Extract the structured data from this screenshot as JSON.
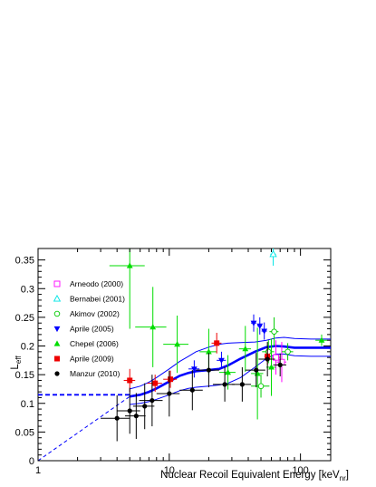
{
  "chart_data": {
    "type": "scatter",
    "x_scale": "log",
    "xlim": [
      1,
      170
    ],
    "ylim": [
      0,
      0.37
    ],
    "xlabel": "Nuclear Recoil Equivalent Energy [keV",
    "xlabel_sub": "nr",
    "xlabel_end": "]",
    "ylabel": "L",
    "ylabel_sub": "eff",
    "x_ticks": [
      {
        "value": 1,
        "label": "1"
      },
      {
        "value": 10,
        "label": "10"
      },
      {
        "value": 100,
        "label": "100"
      }
    ],
    "y_ticks": [
      {
        "value": 0,
        "label": "0"
      },
      {
        "value": 0.05,
        "label": "0.05"
      },
      {
        "value": 0.1,
        "label": "0.1"
      },
      {
        "value": 0.15,
        "label": "0.15"
      },
      {
        "value": 0.2,
        "label": "0.2"
      },
      {
        "value": 0.25,
        "label": "0.25"
      },
      {
        "value": 0.3,
        "label": "0.3"
      },
      {
        "value": 0.35,
        "label": "0.35"
      }
    ],
    "legend_position": "top-left",
    "series": [
      {
        "name": "Arneodo (2000)",
        "color": "#ff00ff",
        "marker": "square-open",
        "points": [
          {
            "x": 65,
            "y": 0.18,
            "xerr": 5,
            "yerr": 0.03
          },
          {
            "x": 72,
            "y": 0.172,
            "xerr": 6,
            "yerr": 0.035
          }
        ]
      },
      {
        "name": "Bernabei (2001)",
        "color": "#00e5e5",
        "marker": "triangle-open",
        "points": [
          {
            "x": 62,
            "y": 0.36,
            "xerr": 3,
            "yerr": 0.02
          }
        ]
      },
      {
        "name": "Akimov (2002)",
        "color": "#00cc00",
        "marker": "circle-open",
        "points": [
          {
            "x": 50,
            "y": 0.13,
            "xerr": 8,
            "yerr": 0.02
          },
          {
            "x": 57,
            "y": 0.19,
            "xerr": 6,
            "yerr": 0.02
          },
          {
            "x": 63,
            "y": 0.225,
            "xerr": 5,
            "yerr": 0.025
          },
          {
            "x": 80,
            "y": 0.19,
            "xerr": 8,
            "yerr": 0.015
          }
        ]
      },
      {
        "name": "Aprile (2005)",
        "color": "#0000ff",
        "marker": "triangle-down",
        "points": [
          {
            "x": 15.5,
            "y": 0.16,
            "xerr": 1.5,
            "yerr": 0.015
          },
          {
            "x": 25,
            "y": 0.175,
            "xerr": 2,
            "yerr": 0.015
          },
          {
            "x": 44,
            "y": 0.24,
            "xerr": 2,
            "yerr": 0.015
          },
          {
            "x": 49,
            "y": 0.235,
            "xerr": 2,
            "yerr": 0.015
          },
          {
            "x": 53,
            "y": 0.226,
            "xerr": 2.5,
            "yerr": 0.015
          }
        ]
      },
      {
        "name": "Chepel (2006)",
        "color": "#00dd00",
        "marker": "triangle-up",
        "points": [
          {
            "x": 5,
            "y": 0.34,
            "xerr": 1.5,
            "yerr": 0.11
          },
          {
            "x": 7.5,
            "y": 0.233,
            "xerr": 2,
            "yerr": 0.07
          },
          {
            "x": 11.5,
            "y": 0.203,
            "xerr": 2.5,
            "yerr": 0.05
          },
          {
            "x": 20,
            "y": 0.19,
            "xerr": 3,
            "yerr": 0.04
          },
          {
            "x": 28,
            "y": 0.154,
            "xerr": 4,
            "yerr": 0.03
          },
          {
            "x": 38,
            "y": 0.195,
            "xerr": 4,
            "yerr": 0.04
          },
          {
            "x": 47,
            "y": 0.152,
            "xerr": 5,
            "yerr": 0.08
          },
          {
            "x": 60,
            "y": 0.163,
            "xerr": 5,
            "yerr": 0.05
          },
          {
            "x": 145,
            "y": 0.21,
            "xerr": 15,
            "yerr": 0.01
          }
        ]
      },
      {
        "name": "Aprile (2009)",
        "color": "#ee0000",
        "marker": "square",
        "points": [
          {
            "x": 5,
            "y": 0.14,
            "xerr": 0.5,
            "yerr": 0.02
          },
          {
            "x": 7.8,
            "y": 0.135,
            "xerr": 1,
            "yerr": 0.015
          },
          {
            "x": 10.2,
            "y": 0.142,
            "xerr": 1.2,
            "yerr": 0.015
          },
          {
            "x": 23,
            "y": 0.205,
            "xerr": 2,
            "yerr": 0.018
          },
          {
            "x": 56,
            "y": 0.182,
            "xerr": 3,
            "yerr": 0.015
          }
        ]
      },
      {
        "name": "Manzur (2010)",
        "color": "#000000",
        "marker": "circle",
        "points": [
          {
            "x": 4,
            "y": 0.074,
            "xerr": 1,
            "yerr": 0.04
          },
          {
            "x": 5,
            "y": 0.087,
            "xerr": 1,
            "yerr": 0.04
          },
          {
            "x": 5.6,
            "y": 0.078,
            "xerr": 1,
            "yerr": 0.04
          },
          {
            "x": 6.5,
            "y": 0.095,
            "xerr": 1.2,
            "yerr": 0.04
          },
          {
            "x": 7.4,
            "y": 0.105,
            "xerr": 1.5,
            "yerr": 0.045
          },
          {
            "x": 10,
            "y": 0.117,
            "xerr": 2,
            "yerr": 0.04
          },
          {
            "x": 15,
            "y": 0.123,
            "xerr": 3,
            "yerr": 0.035
          },
          {
            "x": 20,
            "y": 0.158,
            "xerr": 4,
            "yerr": 0.03
          },
          {
            "x": 26.5,
            "y": 0.133,
            "xerr": 5,
            "yerr": 0.03
          },
          {
            "x": 36,
            "y": 0.133,
            "xerr": 6,
            "yerr": 0.03
          },
          {
            "x": 46,
            "y": 0.158,
            "xerr": 8,
            "yerr": 0.03
          },
          {
            "x": 56,
            "y": 0.177,
            "xerr": 8,
            "yerr": 0.03
          },
          {
            "x": 70,
            "y": 0.167,
            "xerr": 8,
            "yerr": 0.02
          }
        ]
      }
    ],
    "fit_curve": {
      "color": "#0000ff",
      "central": [
        [
          5,
          0.112
        ],
        [
          6,
          0.115
        ],
        [
          7,
          0.12
        ],
        [
          8,
          0.126
        ],
        [
          10,
          0.138
        ],
        [
          12,
          0.148
        ],
        [
          14,
          0.153
        ],
        [
          16,
          0.156
        ],
        [
          20,
          0.158
        ],
        [
          24,
          0.16
        ],
        [
          28,
          0.166
        ],
        [
          35,
          0.178
        ],
        [
          45,
          0.19
        ],
        [
          55,
          0.198
        ],
        [
          65,
          0.2
        ],
        [
          75,
          0.199
        ],
        [
          90,
          0.197
        ],
        [
          120,
          0.197
        ],
        [
          170,
          0.197
        ]
      ],
      "upper": [
        [
          5,
          0.125
        ],
        [
          6,
          0.13
        ],
        [
          7,
          0.137
        ],
        [
          8,
          0.145
        ],
        [
          10,
          0.16
        ],
        [
          12,
          0.173
        ],
        [
          14,
          0.182
        ],
        [
          16,
          0.19
        ],
        [
          20,
          0.198
        ],
        [
          24,
          0.203
        ],
        [
          28,
          0.205
        ],
        [
          35,
          0.206
        ],
        [
          45,
          0.207
        ],
        [
          55,
          0.21
        ],
        [
          65,
          0.214
        ],
        [
          75,
          0.215
        ],
        [
          90,
          0.213
        ],
        [
          120,
          0.212
        ],
        [
          170,
          0.212
        ]
      ],
      "lower": [
        [
          5,
          0.098
        ],
        [
          6,
          0.1
        ],
        [
          7,
          0.103
        ],
        [
          8,
          0.107
        ],
        [
          10,
          0.115
        ],
        [
          12,
          0.122
        ],
        [
          14,
          0.126
        ],
        [
          16,
          0.128
        ],
        [
          20,
          0.13
        ],
        [
          24,
          0.132
        ],
        [
          28,
          0.135
        ],
        [
          35,
          0.145
        ],
        [
          45,
          0.163
        ],
        [
          55,
          0.178
        ],
        [
          65,
          0.186
        ],
        [
          75,
          0.186
        ],
        [
          90,
          0.183
        ],
        [
          120,
          0.182
        ],
        [
          170,
          0.182
        ]
      ],
      "flat_extrapolation": [
        [
          1,
          0.115
        ],
        [
          5,
          0.115
        ]
      ],
      "linear_extrapolation": [
        [
          1,
          0.0
        ],
        [
          5,
          0.112
        ]
      ]
    }
  }
}
